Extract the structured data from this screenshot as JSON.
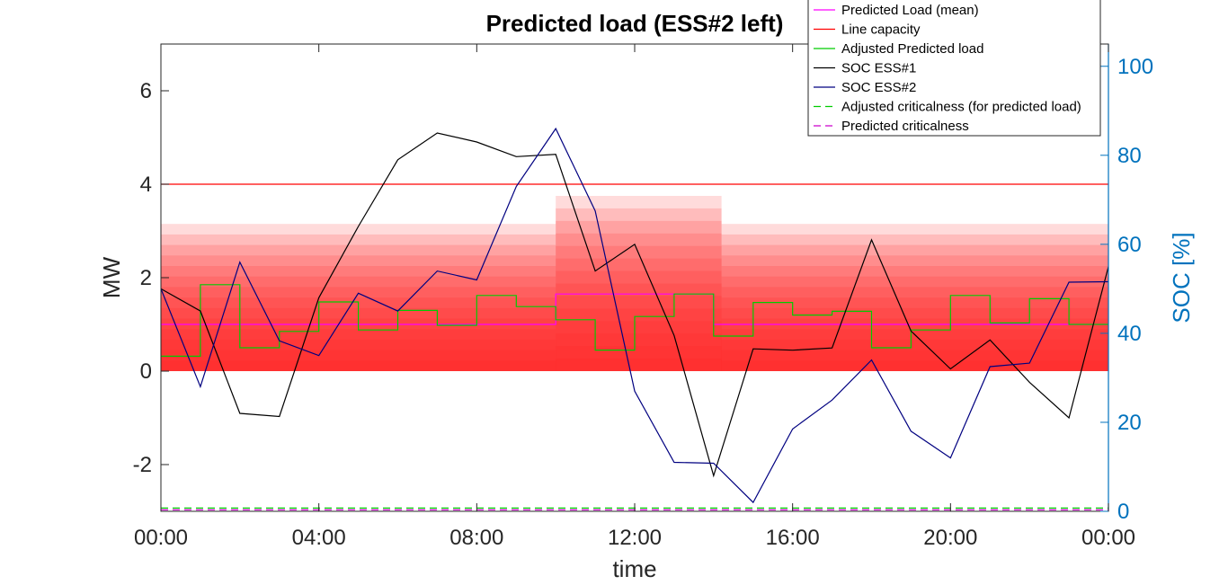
{
  "chart_data": {
    "type": "line",
    "title": "Predicted load (ESS#2 left)",
    "xlabel": "time",
    "ylabel": "MW",
    "y2label": "SOC [%]",
    "xticks": [
      "00:00",
      "04:00",
      "08:00",
      "12:00",
      "16:00",
      "20:00",
      "00:00"
    ],
    "xlim": [
      0,
      24
    ],
    "ylim": [
      -3,
      7
    ],
    "yticks": [
      -2,
      0,
      2,
      4,
      6
    ],
    "y2lim": [
      0,
      105
    ],
    "y2ticks": [
      0,
      20,
      40,
      60,
      80,
      100
    ],
    "grid": false,
    "legend_position": "top-right",
    "colors": {
      "mean": "#FF00FF",
      "capacity": "#FF0000",
      "adjusted": "#00CC00",
      "soc1": "#000000",
      "soc2": "#000080",
      "adj_crit": "#00CC00",
      "pred_crit": "#CC00CC",
      "right_axis": "#0072BD",
      "band": "#FF2020"
    },
    "bands": {
      "segments": [
        {
          "x0": 0,
          "x1": 10,
          "y0": 0,
          "y1": 3.15
        },
        {
          "x0": 10,
          "x1": 14.2,
          "y0": 0,
          "y1": 3.75
        },
        {
          "x0": 14.2,
          "x1": 24,
          "y0": 0,
          "y1": 3.15
        }
      ]
    },
    "series": [
      {
        "name": "Predicted Load (mean)",
        "axis": "left",
        "style": "step",
        "x": [
          0,
          10,
          14,
          24
        ],
        "y": [
          1.0,
          1.65,
          1.0,
          1.0
        ]
      },
      {
        "name": "Line capacity",
        "axis": "left",
        "style": "line",
        "x": [
          0,
          24
        ],
        "y": [
          4.0,
          4.0
        ]
      },
      {
        "name": "Adjusted Predicted load",
        "axis": "left",
        "style": "step",
        "x": [
          0,
          1,
          2,
          3,
          4,
          5,
          6,
          7,
          8,
          9,
          10,
          11,
          12,
          13,
          14,
          15,
          16,
          17,
          18,
          19,
          20,
          21,
          22,
          23,
          24
        ],
        "y": [
          0.32,
          1.85,
          0.5,
          0.85,
          1.48,
          0.88,
          1.3,
          0.98,
          1.62,
          1.38,
          1.1,
          0.45,
          1.17,
          1.65,
          0.75,
          1.47,
          1.2,
          1.28,
          0.5,
          0.88,
          1.62,
          1.03,
          1.55,
          1.0,
          1.0
        ]
      },
      {
        "name": "SOC ESS#1",
        "axis": "right",
        "style": "line",
        "x": [
          0,
          1,
          2,
          3,
          4,
          5,
          6,
          7,
          8,
          9,
          10,
          11,
          12,
          13,
          14,
          15,
          16,
          17,
          18,
          19,
          20,
          21,
          22,
          23,
          24
        ],
        "y": [
          50,
          45,
          22,
          21.3,
          48,
          64,
          79,
          85,
          83,
          79.7,
          80.2,
          54,
          60,
          39.5,
          8,
          36.5,
          36.2,
          36.7,
          61,
          40.5,
          32,
          38.5,
          29,
          21,
          55
        ]
      },
      {
        "name": "SOC ESS#2",
        "axis": "right",
        "style": "line",
        "x": [
          0,
          1,
          2,
          3,
          4,
          5,
          6,
          7,
          8,
          9,
          10,
          11,
          12,
          13,
          14,
          15,
          16,
          17,
          18,
          19,
          20,
          21,
          22,
          23,
          24
        ],
        "y": [
          50,
          28,
          56,
          38.3,
          35,
          49,
          45,
          54,
          52,
          73,
          86,
          67.5,
          27,
          11,
          10.8,
          2,
          18.5,
          25,
          34,
          18,
          12,
          32.5,
          33.3,
          51.5,
          51.6
        ]
      },
      {
        "name": "Adjusted criticalness (for predicted load)",
        "axis": "left",
        "style": "dashed",
        "x": [
          0,
          24
        ],
        "y": [
          -2.93,
          -2.93
        ]
      },
      {
        "name": "Predicted criticalness",
        "axis": "left",
        "style": "dashed",
        "x": [
          0,
          24
        ],
        "y": [
          -2.97,
          -2.97
        ]
      }
    ]
  }
}
